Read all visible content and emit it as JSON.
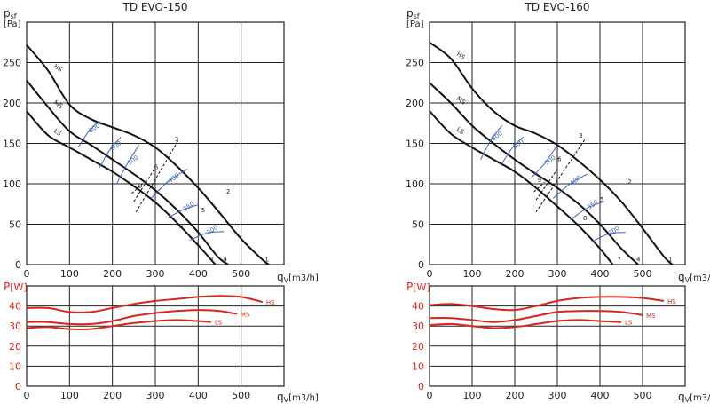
{
  "colors": {
    "curve": "#111111",
    "grid": "#222222",
    "rpm_curve": "#3a64b5",
    "power": "#d7261e"
  },
  "chart_data": [
    {
      "title": "TD EVO-150",
      "type": "line",
      "pressure": {
        "ylabel": "p",
        "ylabel_sub": "sf",
        "ylabel_unit": "[Pa]",
        "xlabel": "q",
        "xlabel_sub": "V",
        "xlabel_unit": "[m3/h]",
        "xlim": [
          0,
          600
        ],
        "ylim": [
          0,
          300
        ],
        "xticks": [
          "0",
          "100",
          "200",
          "300",
          "400",
          "500"
        ],
        "yticks": [
          "0",
          "50",
          "100",
          "150",
          "200",
          "250"
        ],
        "grid": true,
        "series": [
          {
            "name": "HS",
            "x": [
              0,
              50,
              100,
              150,
              200,
              250,
              300,
              350,
              400,
              450,
              500,
              550,
              565
            ],
            "y": [
              272,
              240,
              198,
              180,
              170,
              160,
              145,
              122,
              95,
              64,
              32,
              6,
              0
            ]
          },
          {
            "name": "MS",
            "x": [
              0,
              50,
              100,
              150,
              200,
              250,
              300,
              350,
              400,
              445,
              470
            ],
            "y": [
              228,
              195,
              165,
              148,
              130,
              112,
              92,
              68,
              40,
              10,
              0
            ]
          },
          {
            "name": "LS",
            "x": [
              0,
              50,
              100,
              150,
              200,
              250,
              300,
              350,
              400,
              440
            ],
            "y": [
              190,
              160,
              145,
              130,
              115,
              97,
              77,
              52,
              24,
              0
            ]
          }
        ],
        "rpm_curves": [
          {
            "name": "800",
            "x": [
              120,
              145,
              170
            ],
            "y": [
              145,
              165,
              178
            ]
          },
          {
            "name": "600",
            "x": [
              170,
              195,
              220
            ],
            "y": [
              120,
              143,
              158
            ]
          },
          {
            "name": "500",
            "x": [
              210,
              235,
              262
            ],
            "y": [
              100,
              125,
              148
            ]
          },
          {
            "name": "400",
            "x": [
              290,
              330,
              375
            ],
            "y": [
              82,
              103,
              118
            ]
          },
          {
            "name": "350",
            "x": [
              330,
              365,
              400
            ],
            "y": [
              58,
              68,
              74
            ]
          },
          {
            "name": "300",
            "x": [
              380,
              420,
              460
            ],
            "y": [
              30,
              39,
              41
            ]
          }
        ],
        "system_lines": [
          {
            "name": "3",
            "x": [
              255,
              355
            ],
            "y": [
              65,
              155
            ]
          },
          {
            "name": "6",
            "x": [
              250,
              300
            ],
            "y": [
              78,
              120
            ]
          },
          {
            "name": "9",
            "x": [
              245,
              270
            ],
            "y": [
              88,
              100
            ]
          }
        ],
        "point_labels": [
          {
            "label": "1",
            "x": 560,
            "y": 4
          },
          {
            "label": "2",
            "x": 470,
            "y": 88
          },
          {
            "label": "3",
            "x": 350,
            "y": 153
          },
          {
            "label": "4",
            "x": 463,
            "y": 4
          },
          {
            "label": "5",
            "x": 412,
            "y": 65
          },
          {
            "label": "6",
            "x": 302,
            "y": 118
          },
          {
            "label": "7",
            "x": 432,
            "y": 4
          },
          {
            "label": "8",
            "x": 360,
            "y": 45
          },
          {
            "label": "9",
            "x": 265,
            "y": 95
          }
        ]
      },
      "power": {
        "ylabel": "P",
        "ylabel_unit": "[W]",
        "xlabel": "q",
        "xlabel_sub": "V",
        "xlabel_unit": "[m3/h]",
        "xlim": [
          0,
          600
        ],
        "ylim": [
          0,
          50
        ],
        "xticks": [
          "0",
          "100",
          "200",
          "300",
          "400",
          "500"
        ],
        "yticks": [
          "0",
          "10",
          "20",
          "30",
          "40"
        ],
        "grid": true,
        "series": [
          {
            "name": "HS",
            "x": [
              0,
              50,
              100,
              150,
              200,
              250,
              300,
              350,
              400,
              450,
              500,
              550
            ],
            "y": [
              39,
              39,
              37,
              37,
              39,
              41,
              42.5,
              43.5,
              44.5,
              45,
              44.5,
              42
            ]
          },
          {
            "name": "MS",
            "x": [
              0,
              50,
              100,
              150,
              200,
              250,
              300,
              350,
              400,
              450,
              490
            ],
            "y": [
              32,
              32,
              31,
              31,
              32.5,
              35,
              36.5,
              37.5,
              38,
              37.5,
              36
            ]
          },
          {
            "name": "LS",
            "x": [
              0,
              50,
              100,
              150,
              200,
              250,
              300,
              350,
              400,
              430
            ],
            "y": [
              29,
              29.5,
              28.5,
              28.5,
              30,
              31.5,
              32.5,
              33,
              32.5,
              32
            ]
          }
        ]
      }
    },
    {
      "title": "TD EVO-160",
      "type": "line",
      "pressure": {
        "ylabel": "p",
        "ylabel_sub": "sf",
        "ylabel_unit": "[Pa]",
        "xlabel": "q",
        "xlabel_sub": "V",
        "xlabel_unit": "[m3/h]",
        "xlim": [
          0,
          600
        ],
        "ylim": [
          0,
          300
        ],
        "xticks": [
          "0",
          "100",
          "200",
          "300",
          "400",
          "500"
        ],
        "yticks": [
          "0",
          "50",
          "100",
          "150",
          "200",
          "250"
        ],
        "grid": true,
        "series": [
          {
            "name": "HS",
            "x": [
              0,
              50,
              100,
              150,
              200,
              250,
              300,
              350,
              400,
              450,
              500,
              550,
              570
            ],
            "y": [
              275,
              255,
              218,
              190,
              172,
              162,
              148,
              128,
              105,
              78,
              45,
              10,
              0
            ]
          },
          {
            "name": "MS",
            "x": [
              0,
              50,
              100,
              150,
              200,
              250,
              300,
              350,
              400,
              450,
              490
            ],
            "y": [
              225,
              200,
              172,
              150,
              130,
              112,
              95,
              75,
              50,
              20,
              0
            ]
          },
          {
            "name": "LS",
            "x": [
              0,
              50,
              100,
              150,
              200,
              250,
              300,
              350,
              400,
              430
            ],
            "y": [
              190,
              162,
              145,
              130,
              115,
              95,
              72,
              48,
              20,
              0
            ]
          }
        ],
        "rpm_curves": [
          {
            "name": "800",
            "x": [
              120,
              145,
              170
            ],
            "y": [
              130,
              155,
              172
            ]
          },
          {
            "name": "600",
            "x": [
              170,
              195,
              220
            ],
            "y": [
              125,
              145,
              158
            ]
          },
          {
            "name": "500",
            "x": [
              240,
              270,
              300
            ],
            "y": [
              108,
              125,
              148
            ]
          },
          {
            "name": "400",
            "x": [
              290,
              330,
              370
            ],
            "y": [
              82,
              100,
              112
            ]
          },
          {
            "name": "350",
            "x": [
              330,
              370,
              410
            ],
            "y": [
              55,
              70,
              78
            ]
          },
          {
            "name": "300",
            "x": [
              380,
              420,
              460
            ],
            "y": [
              28,
              38,
              40
            ]
          }
        ],
        "system_lines": [
          {
            "name": "3",
            "x": [
              250,
              365
            ],
            "y": [
              65,
              155
            ]
          },
          {
            "name": "6",
            "x": [
              250,
              300
            ],
            "y": [
              80,
              118
            ]
          },
          {
            "name": "9",
            "x": [
              245,
              270
            ],
            "y": [
              90,
              102
            ]
          }
        ],
        "point_labels": [
          {
            "label": "1",
            "x": 565,
            "y": 4
          },
          {
            "label": "2",
            "x": 470,
            "y": 100
          },
          {
            "label": "3",
            "x": 355,
            "y": 157
          },
          {
            "label": "4",
            "x": 490,
            "y": 4
          },
          {
            "label": "5",
            "x": 405,
            "y": 78
          },
          {
            "label": "6",
            "x": 305,
            "y": 128
          },
          {
            "label": "7",
            "x": 445,
            "y": 4
          },
          {
            "label": "8",
            "x": 365,
            "y": 55
          },
          {
            "label": "9",
            "x": 258,
            "y": 102
          }
        ]
      },
      "power": {
        "ylabel": "P",
        "ylabel_unit": "[W]",
        "xlabel": "q",
        "xlabel_sub": "V",
        "xlabel_unit": "[m3/h]",
        "xlim": [
          0,
          600
        ],
        "ylim": [
          0,
          50
        ],
        "xticks": [
          "0",
          "100",
          "200",
          "300",
          "400",
          "500"
        ],
        "yticks": [
          "0",
          "10",
          "20",
          "30",
          "40"
        ],
        "grid": true,
        "series": [
          {
            "name": "HS",
            "x": [
              0,
              50,
              100,
              150,
              200,
              250,
              300,
              350,
              400,
              450,
              500,
              550
            ],
            "y": [
              40.5,
              41,
              40,
              38.5,
              38,
              40,
              42.5,
              44,
              44.5,
              44.5,
              44,
              42.5
            ]
          },
          {
            "name": "MS",
            "x": [
              0,
              50,
              100,
              150,
              200,
              250,
              300,
              350,
              400,
              450,
              500
            ],
            "y": [
              34,
              34,
              33,
              32,
              33,
              35,
              37,
              37.5,
              37.5,
              37,
              35.5
            ]
          },
          {
            "name": "LS",
            "x": [
              0,
              50,
              100,
              150,
              200,
              250,
              300,
              350,
              400,
              450
            ],
            "y": [
              30.5,
              31,
              30,
              29,
              29.5,
              31,
              32.5,
              33,
              32.5,
              32
            ]
          }
        ]
      }
    }
  ]
}
